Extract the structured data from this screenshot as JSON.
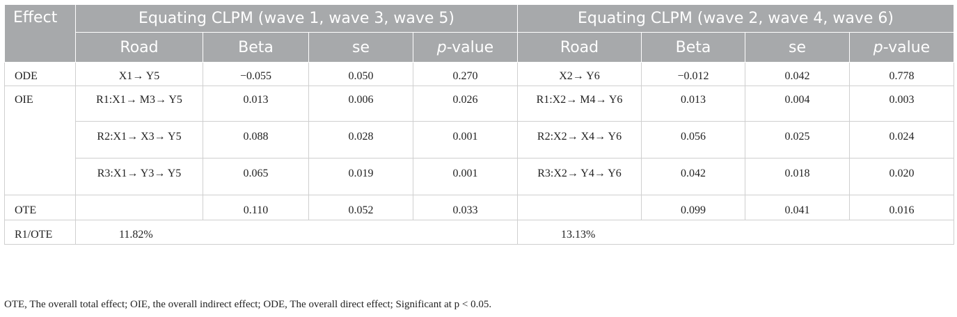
{
  "header": {
    "effect": "Effect",
    "group1": "Equating CLPM (wave 1, wave 3, wave 5)",
    "group2": "Equating CLPM (wave 2, wave 4, wave 6)",
    "road": "Road",
    "beta": "Beta",
    "se": "se",
    "p_italic": "p",
    "p_rest": "-value"
  },
  "rows": {
    "ode": {
      "label": "ODE",
      "road1": "X1→ Y5",
      "beta1": "−0.055",
      "se1": "0.050",
      "p1": "0.270",
      "road2": "X2→ Y6",
      "beta2": "−0.012",
      "se2": "0.042",
      "p2": "0.778"
    },
    "oie": {
      "label": "OIE"
    },
    "r1": {
      "road1": "R1:X1→ M3→ Y5",
      "beta1": "0.013",
      "se1": "0.006",
      "p1": "0.026",
      "road2": "R1:X2→ M4→ Y6",
      "beta2": "0.013",
      "se2": "0.004",
      "p2": "0.003"
    },
    "r2": {
      "road1": "R2:X1→ X3→ Y5",
      "beta1": "0.088",
      "se1": "0.028",
      "p1": "0.001",
      "road2": "R2:X2→ X4→ Y6",
      "beta2": "0.056",
      "se2": "0.025",
      "p2": "0.024"
    },
    "r3": {
      "road1": "R3:X1→ Y3→ Y5",
      "beta1": "0.065",
      "se1": "0.019",
      "p1": "0.001",
      "road2": "R3:X2→ Y4→ Y6",
      "beta2": "0.042",
      "se2": "0.018",
      "p2": "0.020"
    },
    "ote": {
      "label": "OTE",
      "beta1": "0.110",
      "se1": "0.052",
      "p1": "0.033",
      "beta2": "0.099",
      "se2": "0.041",
      "p2": "0.016"
    },
    "ratio": {
      "label": "R1/OTE",
      "val1": "11.82%",
      "val2": "13.13%"
    }
  },
  "footnote": "OTE, The overall total effect; OIE, the overall indirect effect; ODE, The overall direct effect; Significant at p < 0.05."
}
